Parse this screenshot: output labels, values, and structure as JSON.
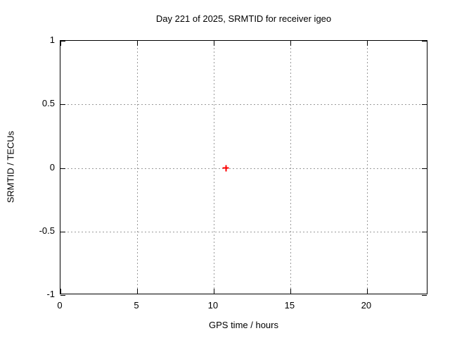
{
  "chart_data": {
    "type": "scatter",
    "title": "Day 221 of 2025, SRMTID for receiver igeo",
    "xlabel": "GPS time / hours",
    "ylabel": "SRMTID / TECUs",
    "xlim": [
      0,
      24
    ],
    "ylim": [
      -1,
      1
    ],
    "xticks": [
      0,
      5,
      10,
      15,
      20
    ],
    "yticks": [
      -1,
      -0.5,
      0,
      0.5,
      1
    ],
    "grid": true,
    "legend_position": "none",
    "marker": "plus",
    "points": [
      {
        "x": 10.8,
        "y": 0
      }
    ]
  },
  "colors": {
    "background": "#ffffff",
    "axis": "#000000",
    "grid": "#9a9a9a",
    "point": "#ff0000",
    "text": "#000000"
  }
}
